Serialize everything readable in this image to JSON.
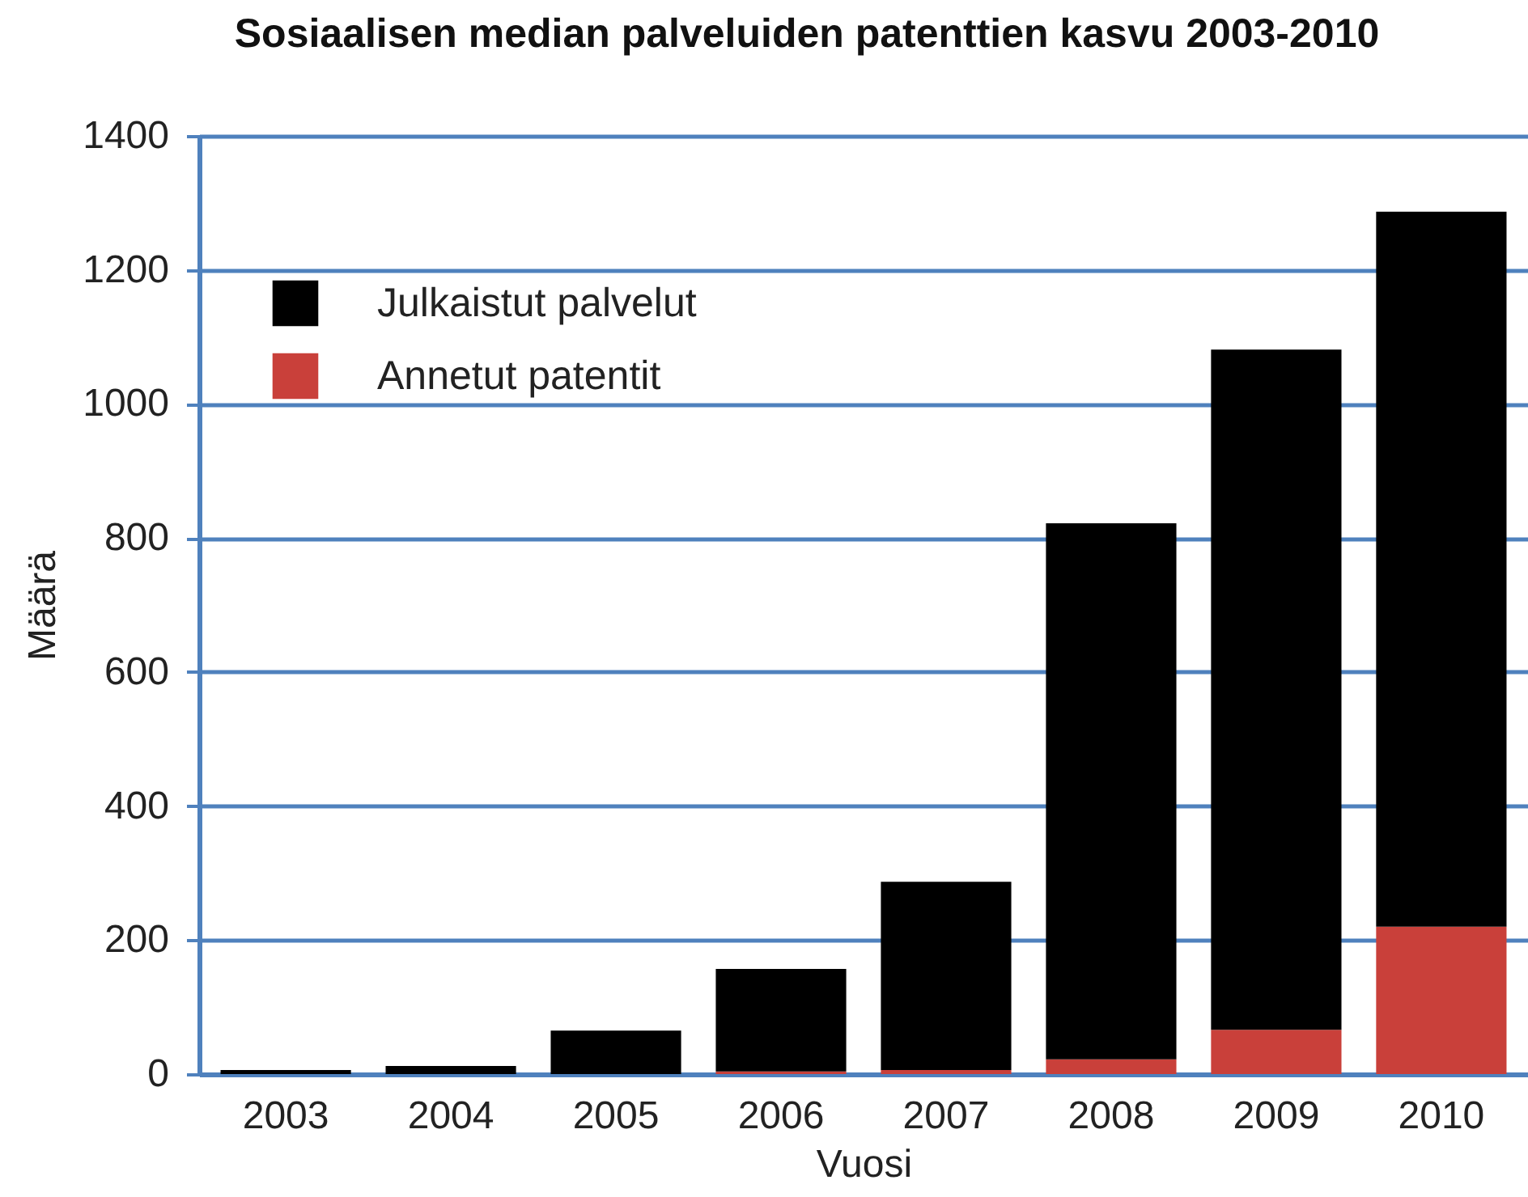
{
  "chart_data": {
    "type": "bar",
    "title": "Sosiaalisen median palveluiden patenttien kasvu 2003-2010",
    "xlabel": "Vuosi",
    "ylabel": "Määrä",
    "categories": [
      "2003",
      "2004",
      "2005",
      "2006",
      "2007",
      "2008",
      "2009",
      "2010"
    ],
    "series": [
      {
        "name": "Annetut patentit",
        "color": "#c9403a",
        "values": [
          0,
          0,
          0,
          4,
          6,
          22,
          66,
          220
        ]
      },
      {
        "name": "Julkaistut palvelut",
        "color": "#000000",
        "values": [
          6,
          12,
          65,
          153,
          281,
          800,
          1015,
          1067
        ]
      }
    ],
    "stacked": true,
    "ylim": [
      0,
      1400
    ],
    "yticks": [
      0,
      200,
      400,
      600,
      800,
      1000,
      1200,
      1400
    ],
    "grid": "y",
    "legend": "top left"
  }
}
